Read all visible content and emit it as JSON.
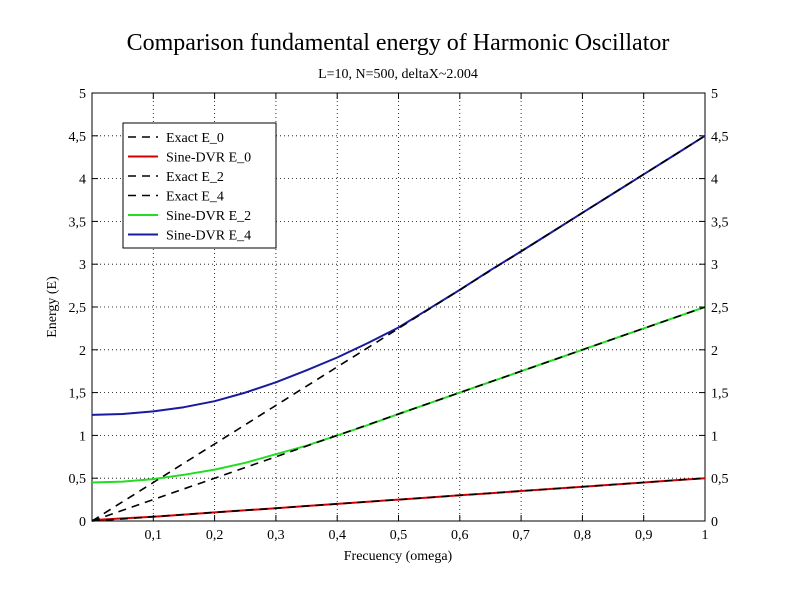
{
  "chart_data": {
    "type": "line",
    "title": "Comparison fundamental energy of Harmonic Oscillator",
    "subtitle": "L=10, N=500, deltaX~2.004",
    "xlabel": "Frecuency (omega)",
    "ylabel": "Energy (E)",
    "xlim": [
      0,
      1
    ],
    "ylim": [
      0,
      5
    ],
    "grid": true,
    "legend_position": "top-left",
    "x_ticks": [
      {
        "v": 0.1,
        "label": "0,1"
      },
      {
        "v": 0.2,
        "label": "0,2"
      },
      {
        "v": 0.3,
        "label": "0,3"
      },
      {
        "v": 0.4,
        "label": "0,4"
      },
      {
        "v": 0.5,
        "label": "0,5"
      },
      {
        "v": 0.6,
        "label": "0,6"
      },
      {
        "v": 0.7,
        "label": "0,7"
      },
      {
        "v": 0.8,
        "label": "0,8"
      },
      {
        "v": 0.9,
        "label": "0,9"
      },
      {
        "v": 1.0,
        "label": "1"
      }
    ],
    "y_ticks": [
      {
        "v": 0,
        "label": "0"
      },
      {
        "v": 0.5,
        "label": "0,5"
      },
      {
        "v": 1,
        "label": "1"
      },
      {
        "v": 1.5,
        "label": "1,5"
      },
      {
        "v": 2,
        "label": "2"
      },
      {
        "v": 2.5,
        "label": "2,5"
      },
      {
        "v": 3,
        "label": "3"
      },
      {
        "v": 3.5,
        "label": "3,5"
      },
      {
        "v": 4,
        "label": "4"
      },
      {
        "v": 4.5,
        "label": "4,5"
      },
      {
        "v": 5,
        "label": "5"
      }
    ],
    "x": [
      0,
      0.05,
      0.1,
      0.15,
      0.2,
      0.25,
      0.3,
      0.35,
      0.4,
      0.45,
      0.5,
      0.55,
      0.6,
      0.65,
      0.7,
      0.75,
      0.8,
      0.85,
      0.9,
      0.95,
      1.0
    ],
    "series": [
      {
        "name": "Exact E_0",
        "color": "#000000",
        "dash": true,
        "values": [
          0,
          0.025,
          0.05,
          0.075,
          0.1,
          0.125,
          0.15,
          0.175,
          0.2,
          0.225,
          0.25,
          0.275,
          0.3,
          0.325,
          0.35,
          0.375,
          0.4,
          0.425,
          0.45,
          0.475,
          0.5
        ]
      },
      {
        "name": "Sine-DVR E_0",
        "color": "#d40000",
        "dash": false,
        "values": [
          0.01,
          0.03,
          0.05,
          0.075,
          0.1,
          0.125,
          0.15,
          0.175,
          0.2,
          0.225,
          0.25,
          0.275,
          0.3,
          0.325,
          0.35,
          0.375,
          0.4,
          0.425,
          0.45,
          0.475,
          0.5
        ]
      },
      {
        "name": "Exact E_2",
        "color": "#000000",
        "dash": true,
        "values": [
          0,
          0.125,
          0.25,
          0.375,
          0.5,
          0.625,
          0.75,
          0.875,
          1.0,
          1.125,
          1.25,
          1.375,
          1.5,
          1.625,
          1.75,
          1.875,
          2.0,
          2.125,
          2.25,
          2.375,
          2.5
        ]
      },
      {
        "name": "Exact E_4",
        "color": "#000000",
        "dash": true,
        "values": [
          0,
          0.225,
          0.45,
          0.675,
          0.9,
          1.125,
          1.35,
          1.575,
          1.8,
          2.025,
          2.25,
          2.475,
          2.7,
          2.925,
          3.15,
          3.375,
          3.6,
          3.825,
          4.05,
          4.275,
          4.5
        ]
      },
      {
        "name": "Sine-DVR E_2",
        "color": "#22dd22",
        "dash": false,
        "values": [
          0.45,
          0.46,
          0.49,
          0.54,
          0.6,
          0.68,
          0.78,
          0.88,
          1.0,
          1.12,
          1.25,
          1.375,
          1.5,
          1.625,
          1.75,
          1.875,
          2.0,
          2.125,
          2.25,
          2.375,
          2.5
        ]
      },
      {
        "name": "Sine-DVR E_4",
        "color": "#1a1aa0",
        "dash": false,
        "values": [
          1.24,
          1.25,
          1.28,
          1.33,
          1.4,
          1.5,
          1.62,
          1.76,
          1.91,
          2.08,
          2.26,
          2.48,
          2.7,
          2.93,
          3.15,
          3.375,
          3.6,
          3.825,
          4.05,
          4.275,
          4.5
        ]
      }
    ]
  }
}
